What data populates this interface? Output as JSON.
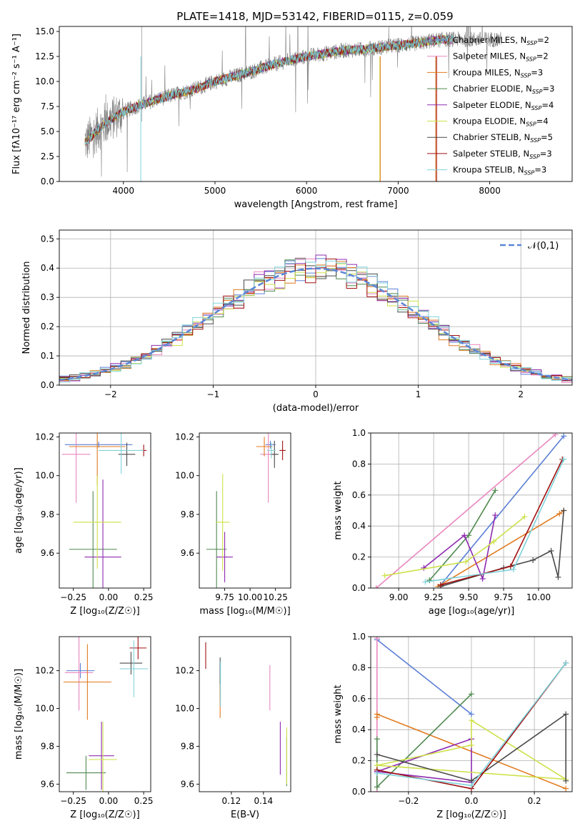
{
  "colors": {
    "Chabrier MILES": "#5b7fd6",
    "Salpeter MILES": "#e986bf",
    "Kroupa MILES": "#e07b21",
    "Chabrier ELODIE": "#4f8a4f",
    "Salpeter ELODIE": "#8e2bb0",
    "Kroupa ELODIE": "#cde14a",
    "Chabrier STELIB": "#4a4a4a",
    "Salpeter STELIB": "#a01010",
    "Kroupa STELIB": "#7ed2da",
    "gaussian": "#5b87d6",
    "data_spectrum": "#808080"
  },
  "chart_data": [
    {
      "id": "spectrum",
      "type": "line",
      "title": "PLATE=1418, MJD=53142, FIBERID=0115, z=0.059",
      "xlabel": "wavelength [Angstrom, rest frame]",
      "ylabel": "Flux [fλ10⁻¹⁷ erg cm⁻² s⁻¹ A⁻¹]",
      "xlim": [
        3300,
        8900
      ],
      "ylim": [
        0,
        15.5
      ],
      "xticks": [
        4000,
        5000,
        6000,
        7000,
        8000
      ],
      "yticks": [
        0.0,
        2.5,
        5.0,
        7.5,
        10.0,
        12.5,
        15.0
      ],
      "ytick_labels": [
        "0.0",
        "2.5",
        "5.0",
        "7.5",
        "10.0",
        "12.5",
        "15.0"
      ],
      "legend_placement": "right",
      "continuum_knots": {
        "x": [
          3600,
          3700,
          3800,
          3900,
          4000,
          4200,
          4400,
          4600,
          4800,
          5000,
          5200,
          5400,
          5600,
          5800,
          6000,
          6200,
          6400,
          6600,
          6800,
          7000,
          7200,
          7400,
          7500
        ],
        "y": [
          4.0,
          5.0,
          5.8,
          6.4,
          7.0,
          7.7,
          8.3,
          8.8,
          9.3,
          10.0,
          10.5,
          11.0,
          11.6,
          12.1,
          12.5,
          12.8,
          13.1,
          13.2,
          13.4,
          13.6,
          13.8,
          14.1,
          14.2
        ]
      },
      "data_extent": [
        3580,
        8130
      ],
      "model_extent": [
        3580,
        7600
      ],
      "series": [
        {
          "name": "Chabrier MILES",
          "nssp": "2"
        },
        {
          "name": "Salpeter MILES",
          "nssp": "2"
        },
        {
          "name": "Kroupa MILES",
          "nssp": "3"
        },
        {
          "name": "Chabrier ELODIE",
          "nssp": "3"
        },
        {
          "name": "Salpeter ELODIE",
          "nssp": "4"
        },
        {
          "name": "Kroupa ELODIE",
          "nssp": "4"
        },
        {
          "name": "Chabrier STELIB",
          "nssp": "5"
        },
        {
          "name": "Salpeter STELIB",
          "nssp": "3"
        },
        {
          "name": "Kroupa STELIB",
          "nssp": "3"
        }
      ]
    },
    {
      "id": "residuals",
      "type": "line",
      "xlabel": "(data-model)/error",
      "ylabel": "Normed distribution",
      "xlim": [
        -2.5,
        2.5
      ],
      "ylim": [
        0,
        0.53
      ],
      "xticks": [
        -2,
        -1,
        0,
        1,
        2
      ],
      "yticks": [
        0.0,
        0.1,
        0.2,
        0.3,
        0.4,
        0.5
      ],
      "grid": true,
      "legend": "𝒩(0,1)",
      "legend_placement": "upper right",
      "bin_width": 0.1
    },
    {
      "id": "age_vs_Z",
      "type": "scatter",
      "xlabel": "Z [log₁₀(Z/Z☉)]",
      "ylabel": "age  [log₁₀(age/yr)]",
      "xlim": [
        -0.35,
        0.3
      ],
      "ylim": [
        9.42,
        10.22
      ],
      "xticks": [
        -0.25,
        0.0,
        0.25
      ],
      "xtick_labels": [
        "−0.25",
        "0.00",
        "0.25"
      ],
      "yticks": [
        9.6,
        9.8,
        10.0,
        10.2
      ],
      "points": [
        {
          "s": "Chabrier MILES",
          "x": -0.07,
          "y": 10.16,
          "xerr": 0.24,
          "yerr": 0.015
        },
        {
          "s": "Salpeter MILES",
          "x": -0.23,
          "y": 10.11,
          "xerr": 0.1,
          "yerr": 0.25
        },
        {
          "s": "Kroupa MILES",
          "x": -0.08,
          "y": 10.15,
          "xerr": 0.2,
          "yerr": 0.2
        },
        {
          "s": "Chabrier ELODIE",
          "x": -0.11,
          "y": 9.62,
          "xerr": 0.17,
          "yerr": 0.3
        },
        {
          "s": "Salpeter ELODIE",
          "x": -0.04,
          "y": 9.58,
          "xerr": 0.13,
          "yerr": 0.4
        },
        {
          "s": "Kroupa ELODIE",
          "x": -0.08,
          "y": 9.76,
          "xerr": 0.17,
          "yerr": 0.24
        },
        {
          "s": "Chabrier STELIB",
          "x": 0.13,
          "y": 10.11,
          "xerr": 0.06,
          "yerr": 0.06
        },
        {
          "s": "Salpeter STELIB",
          "x": 0.25,
          "y": 10.13,
          "xerr": 0.02,
          "yerr": 0.03
        },
        {
          "s": "Kroupa STELIB",
          "x": 0.09,
          "y": 10.13,
          "xerr": 0.16,
          "yerr": 0.12
        }
      ]
    },
    {
      "id": "age_vs_mass",
      "type": "scatter",
      "xlabel": "mass [log₁₀(M/M☉)]",
      "xlim": [
        9.5,
        10.4
      ],
      "ylim": [
        9.42,
        10.22
      ],
      "xticks": [
        9.75,
        10.0,
        10.25
      ],
      "xtick_labels": [
        "9.75",
        "10.00",
        "10.25"
      ],
      "yticks": [
        9.6,
        9.8,
        10.0,
        10.2
      ],
      "points": [
        {
          "s": "Chabrier MILES",
          "x": 10.2,
          "y": 10.16,
          "xerr": 0.05,
          "yerr": 0.02
        },
        {
          "s": "Salpeter MILES",
          "x": 10.18,
          "y": 10.11,
          "xerr": 0.08,
          "yerr": 0.25
        },
        {
          "s": "Kroupa MILES",
          "x": 10.14,
          "y": 10.15,
          "xerr": 0.08,
          "yerr": 0.05
        },
        {
          "s": "Chabrier ELODIE",
          "x": 9.67,
          "y": 9.62,
          "xerr": 0.1,
          "yerr": 0.3
        },
        {
          "s": "Salpeter ELODIE",
          "x": 9.75,
          "y": 9.58,
          "xerr": 0.08,
          "yerr": 0.13
        },
        {
          "s": "Kroupa ELODIE",
          "x": 9.73,
          "y": 9.76,
          "xerr": 0.07,
          "yerr": 0.25
        },
        {
          "s": "Chabrier STELIB",
          "x": 10.24,
          "y": 10.11,
          "xerr": 0.04,
          "yerr": 0.07
        },
        {
          "s": "Salpeter STELIB",
          "x": 10.32,
          "y": 10.13,
          "xerr": 0.03,
          "yerr": 0.05
        },
        {
          "s": "Kroupa STELIB",
          "x": 10.21,
          "y": 10.13,
          "xerr": 0.04,
          "yerr": 0.04
        }
      ]
    },
    {
      "id": "weight_vs_age",
      "type": "line",
      "xlabel": "age  [log₁₀(age/yr)]",
      "ylabel": "mass weight",
      "xlim": [
        8.8,
        10.24
      ],
      "ylim": [
        0,
        1
      ],
      "xticks": [
        9.0,
        9.25,
        9.5,
        9.75,
        10.0
      ],
      "xtick_labels": [
        "9.00",
        "9.25",
        "9.50",
        "9.75",
        "10.00"
      ],
      "yticks": [
        0.0,
        0.2,
        0.4,
        0.6,
        0.8,
        1.0
      ],
      "grid": true,
      "series": [
        {
          "name": "Chabrier MILES",
          "x": [
            9.3,
            10.18
          ],
          "y": [
            0.02,
            0.98
          ]
        },
        {
          "name": "Salpeter MILES",
          "x": [
            8.84,
            10.12
          ],
          "y": [
            0.0,
            0.99
          ]
        },
        {
          "name": "Kroupa MILES",
          "x": [
            9.28,
            10.15,
            10.18
          ],
          "y": [
            0.01,
            0.48,
            0.5
          ]
        },
        {
          "name": "Chabrier ELODIE",
          "x": [
            9.22,
            9.5,
            9.69
          ],
          "y": [
            0.05,
            0.34,
            0.63
          ]
        },
        {
          "name": "Salpeter ELODIE",
          "x": [
            9.18,
            9.47,
            9.6,
            9.69
          ],
          "y": [
            0.13,
            0.34,
            0.06,
            0.47
          ]
        },
        {
          "name": "Kroupa ELODIE",
          "x": [
            8.9,
            9.48,
            9.68,
            9.9
          ],
          "y": [
            0.08,
            0.17,
            0.3,
            0.46
          ]
        },
        {
          "name": "Chabrier STELIB",
          "x": [
            9.3,
            9.75,
            9.96,
            10.09,
            10.14,
            10.18
          ],
          "y": [
            0.01,
            0.13,
            0.18,
            0.24,
            0.07,
            0.5
          ]
        },
        {
          "name": "Salpeter STELIB",
          "x": [
            9.3,
            9.8,
            10.17
          ],
          "y": [
            0.02,
            0.14,
            0.83
          ]
        },
        {
          "name": "Kroupa STELIB",
          "x": [
            9.19,
            9.82,
            10.18
          ],
          "y": [
            0.04,
            0.12,
            0.83
          ]
        }
      ]
    },
    {
      "id": "mass_vs_Z",
      "type": "scatter",
      "xlabel": "Z [log₁₀(Z/Z☉)]",
      "ylabel": "mass [log₁₀(M/M☉)]",
      "xlim": [
        -0.35,
        0.3
      ],
      "ylim": [
        9.56,
        10.38
      ],
      "xticks": [
        -0.25,
        0.0,
        0.25
      ],
      "xtick_labels": [
        "−0.25",
        "0.00",
        "0.25"
      ],
      "yticks": [
        9.6,
        9.8,
        10.0,
        10.2
      ],
      "points": [
        {
          "s": "Chabrier MILES",
          "x": -0.2,
          "y": 10.2,
          "xerr": 0.1,
          "yerr": 0.04
        },
        {
          "s": "Salpeter MILES",
          "x": -0.21,
          "y": 10.19,
          "xerr": 0.1,
          "yerr": 0.2
        },
        {
          "s": "Kroupa MILES",
          "x": -0.15,
          "y": 10.14,
          "xerr": 0.17,
          "yerr": 0.2
        },
        {
          "s": "Chabrier ELODIE",
          "x": -0.16,
          "y": 9.66,
          "xerr": 0.14,
          "yerr": 0.09
        },
        {
          "s": "Salpeter ELODIE",
          "x": -0.05,
          "y": 9.75,
          "xerr": 0.09,
          "yerr": 0.18
        },
        {
          "s": "Kroupa ELODIE",
          "x": -0.04,
          "y": 9.73,
          "xerr": 0.1,
          "yerr": 0.2
        },
        {
          "s": "Chabrier STELIB",
          "x": 0.16,
          "y": 10.24,
          "xerr": 0.08,
          "yerr": 0.06
        },
        {
          "s": "Salpeter STELIB",
          "x": 0.21,
          "y": 10.32,
          "xerr": 0.06,
          "yerr": 0.06
        },
        {
          "s": "Kroupa STELIB",
          "x": 0.18,
          "y": 10.21,
          "xerr": 0.1,
          "yerr": 0.15
        }
      ]
    },
    {
      "id": "mass_vs_ebv",
      "type": "scatter",
      "xlabel": "E(B-V)",
      "xlim": [
        0.1,
        0.157
      ],
      "ylim": [
        9.56,
        10.38
      ],
      "xticks": [
        0.12,
        0.14
      ],
      "xtick_labels": [
        "0.12",
        "0.14"
      ],
      "yticks": [
        9.6,
        9.8,
        10.0,
        10.2
      ],
      "points": [
        {
          "s": "Chabrier MILES",
          "x": 0.113,
          "y": 10.15,
          "xerr": 0,
          "yerr": 0.1
        },
        {
          "s": "Salpeter MILES",
          "x": 0.144,
          "y": 10.11,
          "xerr": 0,
          "yerr": 0.12
        },
        {
          "s": "Kroupa MILES",
          "x": 0.113,
          "y": 10.06,
          "xerr": 0,
          "yerr": 0.11
        },
        {
          "s": "Chabrier ELODIE",
          "x": 0.1545,
          "y": 9.72,
          "xerr": 0,
          "yerr": 0.13
        },
        {
          "s": "Salpeter ELODIE",
          "x": 0.1505,
          "y": 9.79,
          "xerr": 0,
          "yerr": 0.14
        },
        {
          "s": "Kroupa ELODIE",
          "x": 0.1545,
          "y": 9.75,
          "xerr": 0,
          "yerr": 0.15
        },
        {
          "s": "Chabrier STELIB",
          "x": 0.113,
          "y": 10.2,
          "xerr": 0,
          "yerr": 0.07
        },
        {
          "s": "Salpeter STELIB",
          "x": 0.104,
          "y": 10.28,
          "xerr": 0,
          "yerr": 0.07
        },
        {
          "s": "Kroupa STELIB",
          "x": 0.1132,
          "y": 10.13,
          "xerr": 0,
          "yerr": 0.12
        }
      ]
    },
    {
      "id": "weight_vs_Z",
      "type": "line",
      "xlabel": "Z [log₁₀(Z/Z☉)]",
      "ylabel": "mass weight",
      "xlim": [
        -0.32,
        0.32
      ],
      "ylim": [
        0,
        1
      ],
      "xticks": [
        -0.2,
        0.0,
        0.2
      ],
      "xtick_labels": [
        "−0.2",
        "0.0",
        "0.2"
      ],
      "yticks": [
        0.0,
        0.2,
        0.4,
        0.6,
        0.8,
        1.0
      ],
      "grid": true,
      "series": [
        {
          "name": "Chabrier MILES",
          "x": [
            -0.3,
            0.0
          ],
          "y": [
            0.98,
            0.5
          ]
        },
        {
          "name": "Salpeter MILES",
          "x": [
            -0.3,
            -0.3
          ],
          "y": [
            0.0,
            0.99
          ]
        },
        {
          "name": "Kroupa MILES",
          "x": [
            -0.3,
            -0.3,
            0.3
          ],
          "y": [
            0.48,
            0.5,
            0.02
          ]
        },
        {
          "name": "Chabrier ELODIE",
          "x": [
            -0.3,
            -0.3,
            0.0
          ],
          "y": [
            0.34,
            0.03,
            0.63
          ]
        },
        {
          "name": "Salpeter ELODIE",
          "x": [
            -0.3,
            0.0,
            0.0,
            -0.3
          ],
          "y": [
            0.13,
            0.34,
            0.06,
            0.13
          ]
        },
        {
          "name": "Kroupa ELODIE",
          "x": [
            -0.3,
            0.0,
            0.0,
            0.3,
            -0.3
          ],
          "y": [
            0.17,
            0.3,
            0.46,
            0.08,
            0.17
          ]
        },
        {
          "name": "Chabrier STELIB",
          "x": [
            -0.3,
            0.0,
            0.3,
            0.3
          ],
          "y": [
            0.24,
            0.07,
            0.5,
            0.07
          ]
        },
        {
          "name": "Salpeter STELIB",
          "x": [
            -0.3,
            0.0,
            0.3
          ],
          "y": [
            0.14,
            0.02,
            0.83
          ]
        },
        {
          "name": "Kroupa STELIB",
          "x": [
            -0.3,
            0.0,
            0.3
          ],
          "y": [
            0.12,
            0.04,
            0.83
          ]
        }
      ]
    }
  ]
}
